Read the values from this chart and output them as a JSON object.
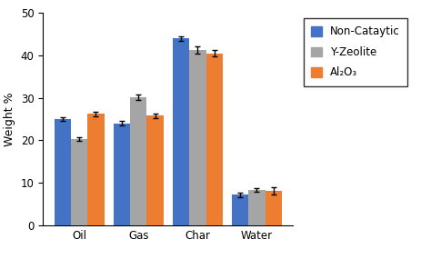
{
  "categories": [
    "Oil",
    "Gas",
    "Char",
    "Water"
  ],
  "series": {
    "Non-Cataytic": {
      "values": [
        25.0,
        24.0,
        44.0,
        7.2
      ],
      "errors": [
        0.5,
        0.5,
        0.5,
        0.5
      ],
      "color": "#4472C4"
    },
    "Y-Zeolite": {
      "values": [
        20.3,
        30.2,
        41.3,
        8.4
      ],
      "errors": [
        0.5,
        0.6,
        0.8,
        0.4
      ],
      "color": "#A5A5A5"
    },
    "Al2O3": {
      "values": [
        26.2,
        25.8,
        40.5,
        8.1
      ],
      "errors": [
        0.5,
        0.5,
        0.7,
        0.8
      ],
      "color": "#ED7D31"
    }
  },
  "ylabel": "Weight %",
  "ylim": [
    0,
    50
  ],
  "yticks": [
    0,
    10,
    20,
    30,
    40,
    50
  ],
  "bar_width": 0.28,
  "legend_labels": [
    "Non-Cataytic",
    "Y-Zeolite",
    "Al₂O₃"
  ],
  "legend_fontsize": 8.5,
  "axis_fontsize": 9,
  "tick_fontsize": 8.5,
  "capsize": 2.5,
  "elinewidth": 1.0,
  "background_color": "#ffffff"
}
